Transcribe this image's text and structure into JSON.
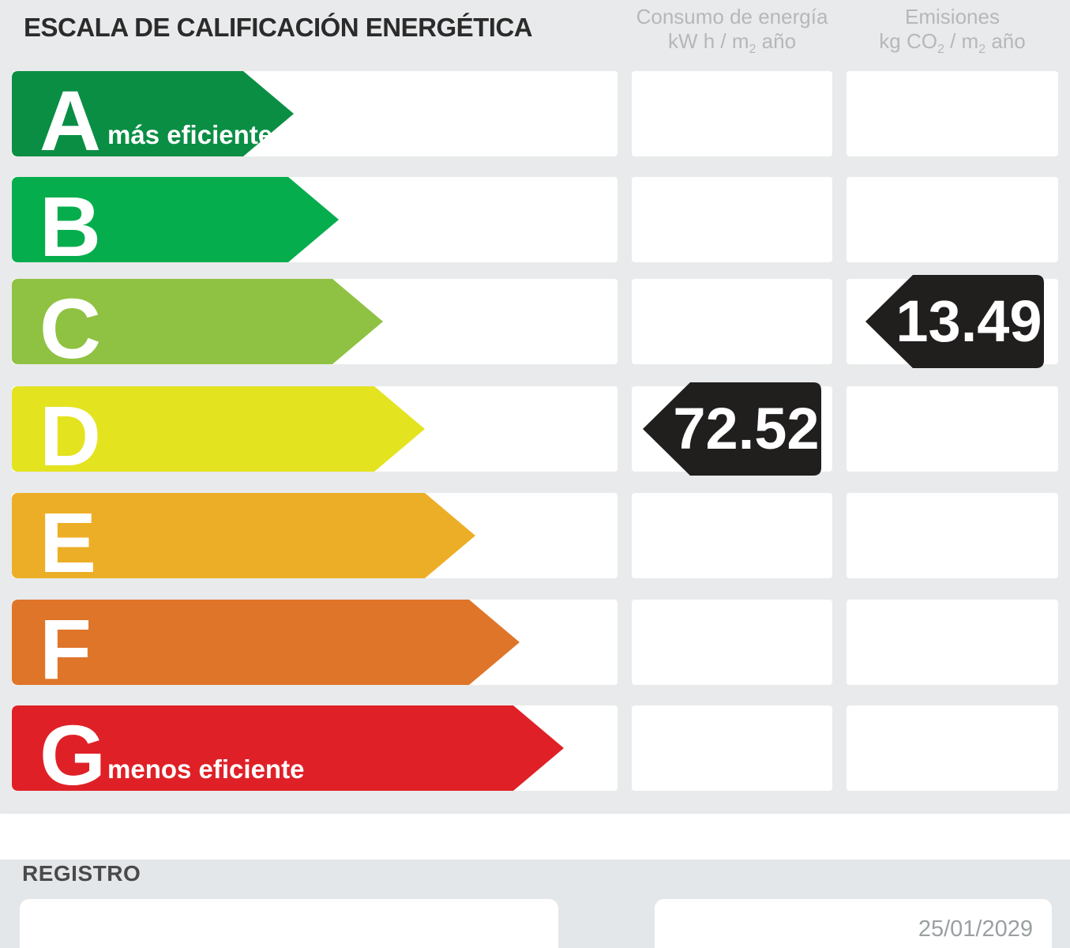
{
  "title": "ESCALA DE CALIFICACIÓN ENERGÉTICA",
  "columns": {
    "consumo": {
      "line1": "Consumo de energía",
      "unit_pre": "kW h / m",
      "unit_sub": "2",
      "unit_post": " año"
    },
    "emisiones": {
      "line1": "Emisiones",
      "unit_pre": "kg CO",
      "unit_sub1": "2",
      "unit_mid": " / m",
      "unit_sub2": "2",
      "unit_post": " año"
    }
  },
  "scale": {
    "rows": [
      {
        "letter": "A",
        "label": "más eficiente",
        "color": "#0a8e44",
        "arrow_width": 357
      },
      {
        "letter": "B",
        "label": "",
        "color": "#06ad4d",
        "arrow_width": 414
      },
      {
        "letter": "C",
        "label": "",
        "color": "#8fc242",
        "arrow_width": 470
      },
      {
        "letter": "D",
        "label": "",
        "color": "#e4e31f",
        "arrow_width": 523
      },
      {
        "letter": "E",
        "label": "",
        "color": "#edae27",
        "arrow_width": 587
      },
      {
        "letter": "F",
        "label": "",
        "color": "#df7529",
        "arrow_width": 643
      },
      {
        "letter": "G",
        "label": "menos eficiente",
        "color": "#e02027",
        "arrow_width": 699
      }
    ]
  },
  "markers": [
    {
      "column": "consumo",
      "row": "D",
      "value": "72.52"
    },
    {
      "column": "emisiones",
      "row": "C",
      "value": "13.49"
    }
  ],
  "marker_color": "#211e1e",
  "registro": {
    "heading": "REGISTRO",
    "date": "25/01/2029"
  },
  "chart_data": {
    "type": "bar",
    "title": "ESCALA DE CALIFICACIÓN ENERGÉTICA",
    "categories": [
      "A",
      "B",
      "C",
      "D",
      "E",
      "F",
      "G"
    ],
    "category_colors": [
      "#0a8e44",
      "#06ad4d",
      "#8fc242",
      "#e4e31f",
      "#edae27",
      "#df7529",
      "#e02027"
    ],
    "annotations": [
      "A = más eficiente",
      "G = menos eficiente"
    ],
    "series": [
      {
        "name": "Consumo de energía kW h / m2 año",
        "rating": "D",
        "value": 72.52
      },
      {
        "name": "Emisiones kg CO2 / m2 año",
        "rating": "C",
        "value": 13.49
      }
    ],
    "legend_position": "top",
    "grid": false
  }
}
